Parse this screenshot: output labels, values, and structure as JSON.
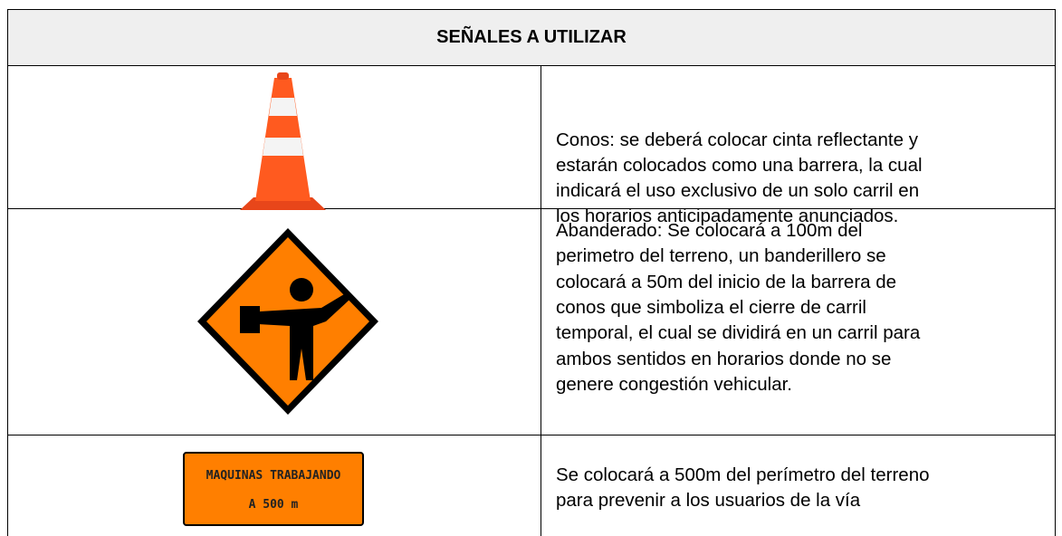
{
  "table": {
    "header": {
      "title": "SEÑALES A UTILIZAR"
    },
    "rows": [
      {
        "lines": [
          "Conos: se deberá colocar cinta reflectante y",
          "estarán colocados como una barrera, la cual",
          "indicará el uso exclusivo de un solo carril en",
          "los horarios anticipadamente anunciados."
        ]
      },
      {
        "lines": [
          "Abanderado: Se colocará a 100m del",
          "perimetro del terreno, un banderillero se",
          "colocará a 50m del inicio de la barrera de",
          "conos que simboliza el cierre de carril",
          "temporal, el cual se dividirá en un carril para",
          "ambos sentidos en horarios donde no se",
          "genere congestión vehicular."
        ]
      },
      {
        "sign": [
          "MAQUINAS TRABAJANDO",
          "A 500 m"
        ],
        "lines": [
          "Se colocará a 500m del perímetro del terreno",
          "para prevenir a los usuarios de la vía"
        ]
      }
    ]
  }
}
